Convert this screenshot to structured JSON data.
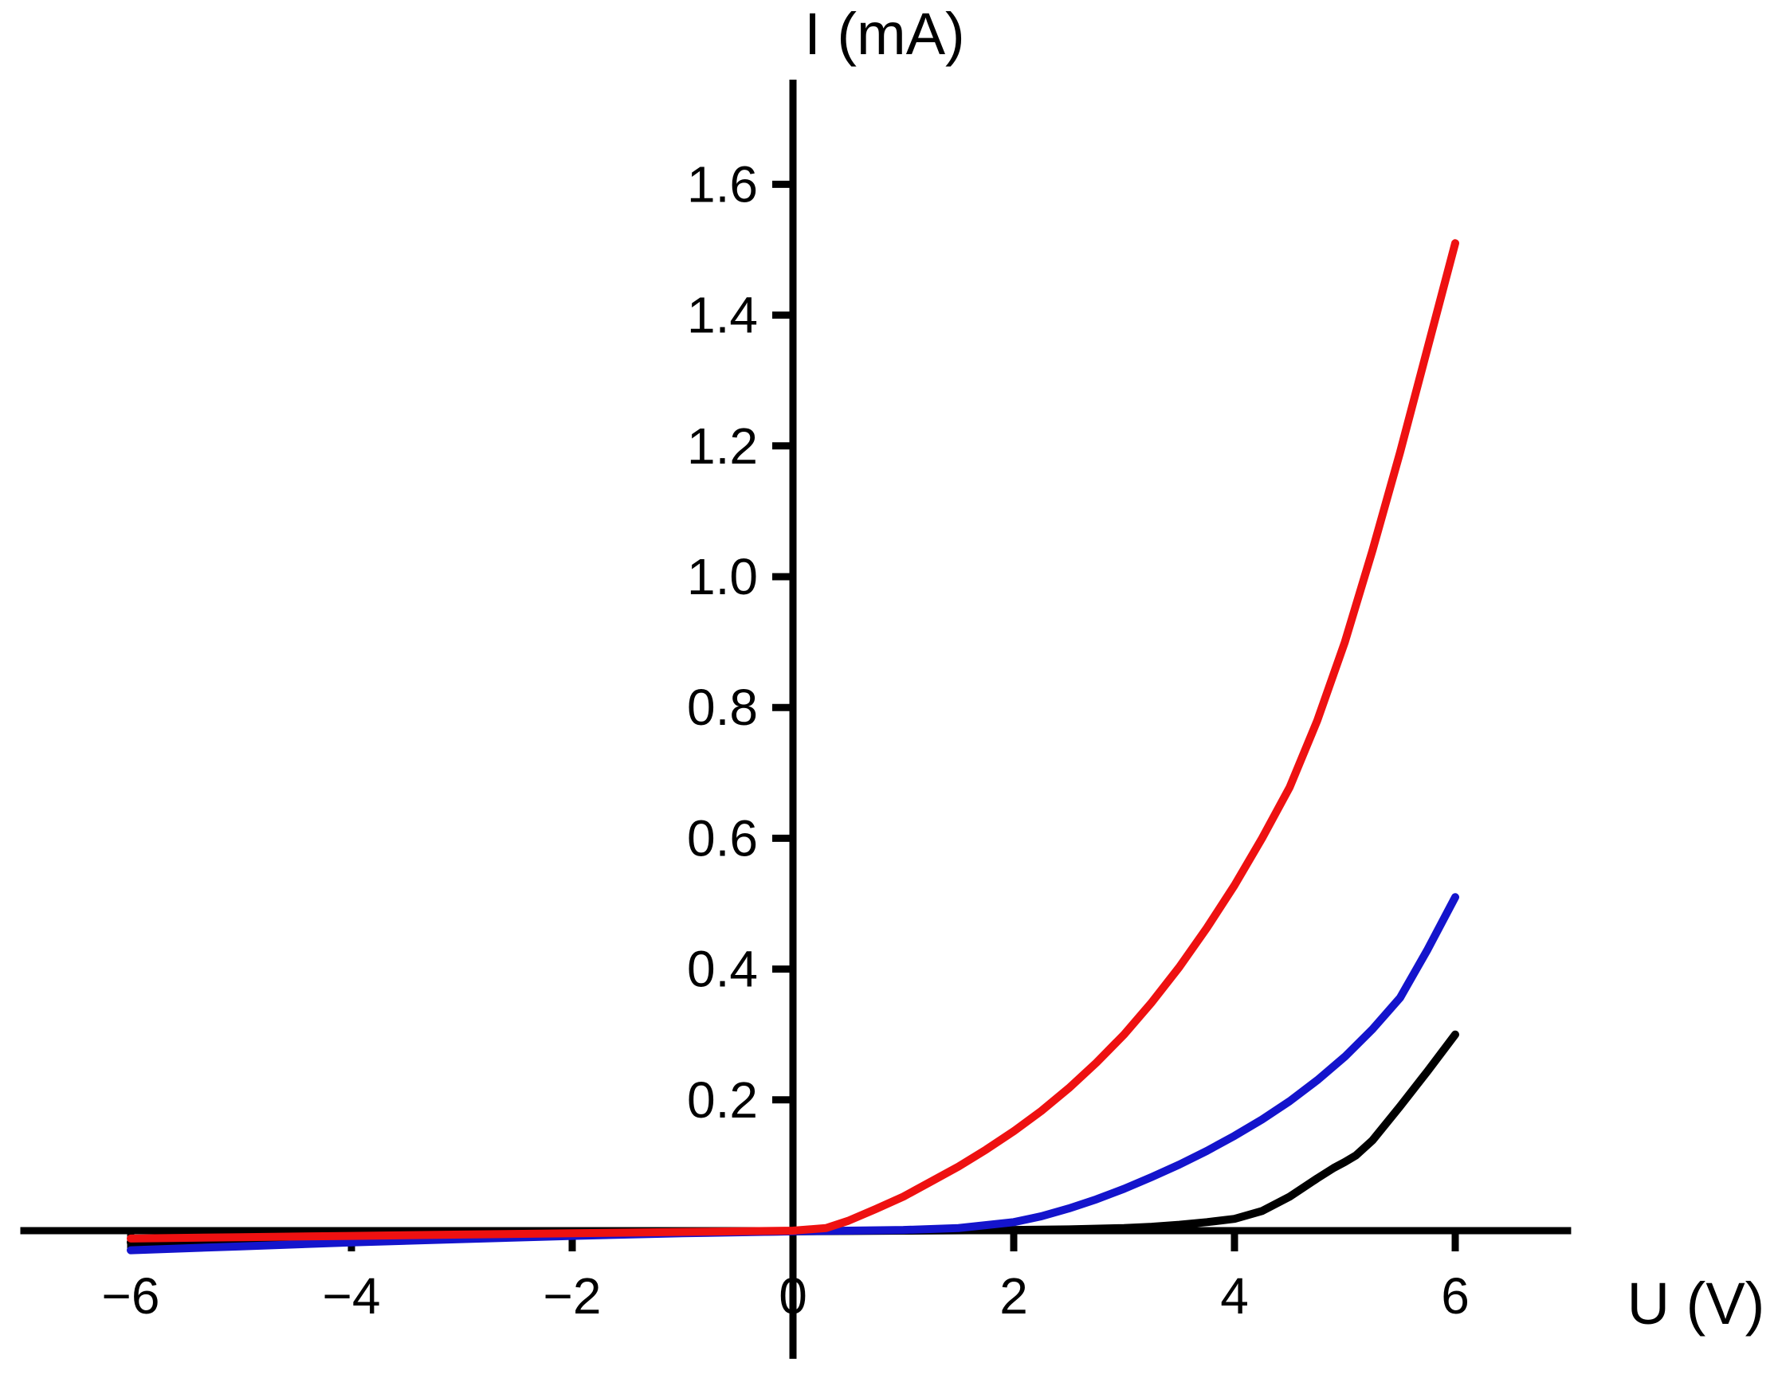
{
  "chart_data": {
    "type": "line",
    "title": "",
    "xlabel": "U (V)",
    "ylabel": "I (mA)",
    "xlim": [
      -7,
      7.05
    ],
    "ylim": [
      -0.2,
      1.76
    ],
    "grid": false,
    "legend": "none",
    "axis_color": "#000000",
    "x_ticks": [
      -6,
      -4,
      -2,
      0,
      2,
      4,
      6
    ],
    "x_tick_labels": [
      "−6",
      "−4",
      "−2",
      "0",
      "2",
      "4",
      "6"
    ],
    "y_ticks": [
      0.2,
      0.4,
      0.6,
      0.8,
      1.0,
      1.2,
      1.4,
      1.6
    ],
    "y_tick_labels": [
      "0.2",
      "0.4",
      "0.6",
      "0.8",
      "1.0",
      "1.2",
      "1.4",
      "1.6"
    ],
    "series": [
      {
        "name": "black-curve",
        "color": "#000000",
        "points": [
          [
            -6,
            -0.018
          ],
          [
            -5,
            -0.015
          ],
          [
            -4,
            -0.012
          ],
          [
            -3,
            -0.009
          ],
          [
            -2,
            -0.006
          ],
          [
            -1,
            -0.003
          ],
          [
            0,
            -0.001
          ],
          [
            1,
            0.0
          ],
          [
            2,
            0.001
          ],
          [
            2.5,
            0.002
          ],
          [
            3,
            0.004
          ],
          [
            3.25,
            0.006
          ],
          [
            3.5,
            0.009
          ],
          [
            3.75,
            0.013
          ],
          [
            4,
            0.018
          ],
          [
            4.25,
            0.03
          ],
          [
            4.5,
            0.052
          ],
          [
            4.75,
            0.08
          ],
          [
            4.9,
            0.096
          ],
          [
            5,
            0.105
          ],
          [
            5.1,
            0.115
          ],
          [
            5.25,
            0.138
          ],
          [
            5.5,
            0.19
          ],
          [
            5.75,
            0.244
          ],
          [
            6,
            0.3
          ]
        ]
      },
      {
        "name": "blue-curve",
        "color": "#1414cc",
        "points": [
          [
            -6,
            -0.03
          ],
          [
            -5,
            -0.024
          ],
          [
            -4,
            -0.018
          ],
          [
            -3,
            -0.013
          ],
          [
            -2,
            -0.008
          ],
          [
            -1,
            -0.004
          ],
          [
            0,
            -0.001
          ],
          [
            0.5,
            0.0
          ],
          [
            1,
            0.001
          ],
          [
            1.5,
            0.004
          ],
          [
            2,
            0.013
          ],
          [
            2.25,
            0.022
          ],
          [
            2.5,
            0.034
          ],
          [
            2.75,
            0.048
          ],
          [
            3,
            0.064
          ],
          [
            3.25,
            0.082
          ],
          [
            3.5,
            0.101
          ],
          [
            3.75,
            0.122
          ],
          [
            4,
            0.145
          ],
          [
            4.25,
            0.17
          ],
          [
            4.5,
            0.198
          ],
          [
            4.75,
            0.23
          ],
          [
            5,
            0.266
          ],
          [
            5.25,
            0.308
          ],
          [
            5.5,
            0.356
          ],
          [
            5.75,
            0.43
          ],
          [
            6,
            0.51
          ]
        ]
      },
      {
        "name": "red-curve",
        "color": "#ee1111",
        "points": [
          [
            -6,
            -0.012
          ],
          [
            -5,
            -0.01
          ],
          [
            -4,
            -0.008
          ],
          [
            -3,
            -0.006
          ],
          [
            -2,
            -0.004
          ],
          [
            -1,
            -0.002
          ],
          [
            0,
            0.0
          ],
          [
            0.3,
            0.004
          ],
          [
            0.5,
            0.015
          ],
          [
            0.75,
            0.033
          ],
          [
            1,
            0.052
          ],
          [
            1.25,
            0.075
          ],
          [
            1.5,
            0.098
          ],
          [
            1.75,
            0.124
          ],
          [
            2,
            0.152
          ],
          [
            2.25,
            0.183
          ],
          [
            2.5,
            0.218
          ],
          [
            2.75,
            0.257
          ],
          [
            3,
            0.3
          ],
          [
            3.25,
            0.349
          ],
          [
            3.5,
            0.403
          ],
          [
            3.75,
            0.463
          ],
          [
            4,
            0.528
          ],
          [
            4.25,
            0.6
          ],
          [
            4.5,
            0.678
          ],
          [
            4.75,
            0.78
          ],
          [
            5,
            0.9
          ],
          [
            5.25,
            1.04
          ],
          [
            5.5,
            1.19
          ],
          [
            5.75,
            1.35
          ],
          [
            6,
            1.51
          ]
        ]
      }
    ]
  }
}
